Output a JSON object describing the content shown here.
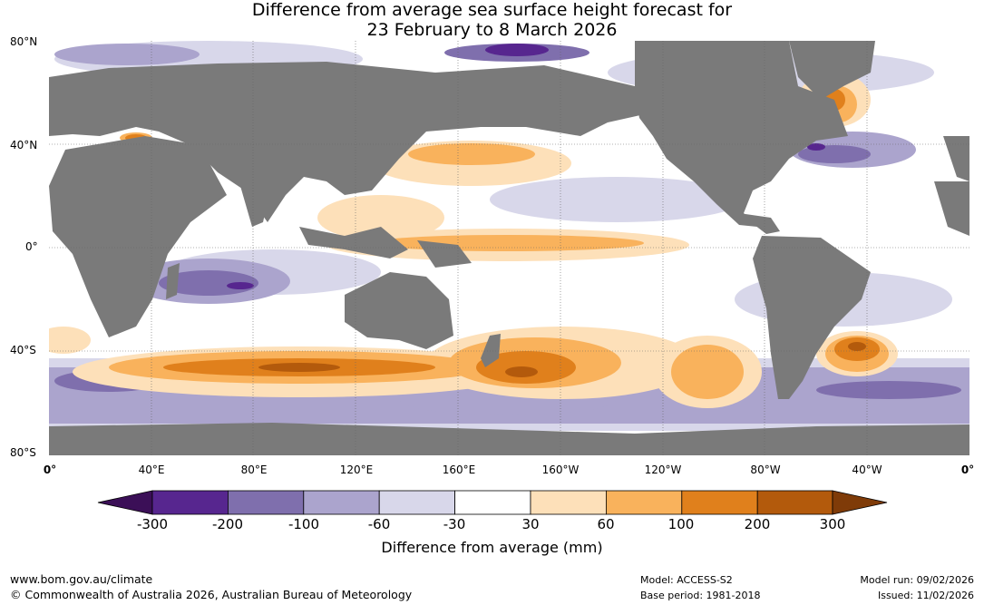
{
  "title": {
    "line1": "Difference from average sea surface height forecast for",
    "line2": "23 February to 8 March 2026"
  },
  "lat_labels": [
    "80°N",
    "40°N",
    "0°",
    "40°S",
    "80°S"
  ],
  "lon_labels": [
    "0°",
    "40°E",
    "80°E",
    "120°E",
    "160°E",
    "160°W",
    "120°W",
    "80°W",
    "40°W",
    "0°"
  ],
  "colorbar": {
    "title": "Difference from average (mm)",
    "ticks": [
      "-300",
      "-200",
      "-100",
      "-60",
      "-30",
      "30",
      "60",
      "100",
      "200",
      "300"
    ],
    "colors": [
      "#3b0f57",
      "#57268f",
      "#7f6fad",
      "#aba4cd",
      "#d8d7ea",
      "#ffffff",
      "#fde0b9",
      "#f9b25c",
      "#e0801c",
      "#b35a0c",
      "#7f3b08"
    ]
  },
  "footer": {
    "website": "www.bom.gov.au/climate",
    "copyright": "© Commonwealth of Australia 2026, Australian Bureau of Meteorology",
    "model": "Model: ACCESS-S2",
    "base_period": "Base period: 1981-2018",
    "model_run": "Model run: 09/02/2026",
    "issued": "Issued: 11/02/2026"
  },
  "land_color": "#7a7a7a"
}
